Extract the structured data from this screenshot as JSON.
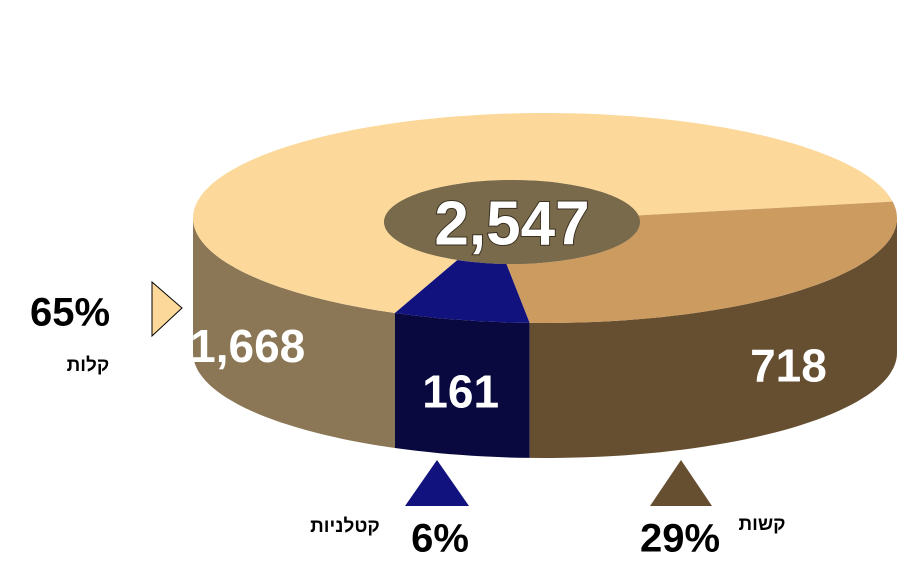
{
  "chart_data": {
    "type": "pie",
    "categories": [
      "קלות",
      "קטלניות",
      "קשות"
    ],
    "values": [
      1668,
      161,
      718
    ],
    "value_labels": [
      "1,668",
      "161",
      "718"
    ],
    "percentages": [
      65,
      6,
      29
    ],
    "percentage_labels": [
      "65%",
      "6%",
      "29%"
    ],
    "colors": [
      "#fcd99a",
      "#12127e",
      "#cc9b60"
    ],
    "total": 2547,
    "total_label": "2,547"
  }
}
